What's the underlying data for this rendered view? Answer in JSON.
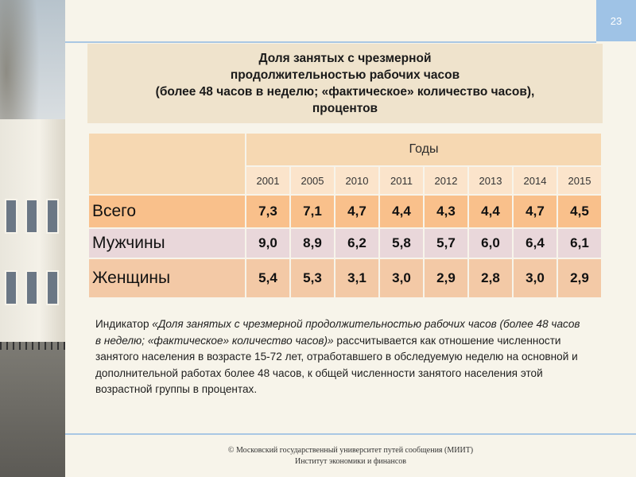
{
  "slide": {
    "page_number": "23",
    "title": "Доля занятых с чрезмерной\nпродолжительностью рабочих часов\n(более 48 часов в неделю; «фактическое» количество часов),\nпроцентов"
  },
  "table": {
    "years_header": "Годы",
    "years": [
      "2001",
      "2005",
      "2010",
      "2011",
      "2012",
      "2013",
      "2014",
      "2015"
    ],
    "rows": [
      {
        "label": "Всего",
        "values": [
          "7,3",
          "7,1",
          "4,7",
          "4,4",
          "4,3",
          "4,4",
          "4,7",
          "4,5"
        ]
      },
      {
        "label": "Мужчины",
        "values": [
          "9,0",
          "8,9",
          "6,2",
          "5,8",
          "5,7",
          "6,0",
          "6,4",
          "6,1"
        ]
      },
      {
        "label": "Женщины",
        "values": [
          "5,4",
          "5,3",
          "3,1",
          "3,0",
          "2,9",
          "2,8",
          "3,0",
          "2,9"
        ]
      }
    ]
  },
  "note": {
    "prefix": "Индикатор ",
    "quoted": "«Доля занятых с чрезмерной продолжительностью рабочих часов (более 48 часов в неделю; «фактическое» количество часов)»",
    "rest": " рассчитывается как отношение численности занятого населения в возрасте 15-72 лет, отработавшего в обследуемую неделю на основной и дополнительной работах более 48 часов, к общей численности занятого населения этой возрастной группы в процентах."
  },
  "footer": {
    "line1": "© Московский государственный университет путей сообщения (МИИТ)",
    "line2": "Институт экономики и финансов"
  },
  "colors": {
    "accent_blue": "#9fc3e6",
    "title_bg": "#efe3cc",
    "row_total": "#f9c08b",
    "row_men": "#e9d7da",
    "row_women": "#f3c9a6"
  }
}
